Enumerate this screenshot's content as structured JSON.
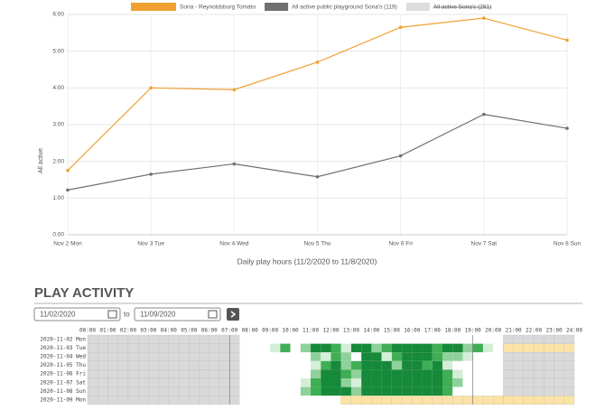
{
  "chart_data": {
    "type": "line",
    "categories": [
      "Nov 2 Mon",
      "Nov 3 Tue",
      "Nov 4 Wed",
      "Nov 5 Thu",
      "Nov 6 Fri",
      "Nov 7 Sat",
      "Nov 8 Sun"
    ],
    "series": [
      {
        "name": "Sona - Reynoldsburg Tomato",
        "color": "#f0a030",
        "values": [
          1.75,
          4.0,
          3.95,
          4.7,
          5.65,
          5.9,
          5.3
        ]
      },
      {
        "name": "All active public playground Sona's (119)",
        "color": "#707070",
        "values": [
          1.22,
          1.65,
          1.93,
          1.58,
          2.15,
          3.28,
          2.9
        ]
      },
      {
        "name": "All active Sona's (281)",
        "color": "#dddddd",
        "hidden": true,
        "values": [
          null,
          null,
          null,
          null,
          null,
          null,
          null
        ]
      }
    ],
    "ylabel": "All active",
    "xlabel": "Daily play hours (11/2/2020 to 11/8/2020)",
    "ylim": [
      0,
      6
    ],
    "yticks": [
      {
        "value": 0,
        "label": "0:00"
      },
      {
        "value": 1,
        "label": "1:00"
      },
      {
        "value": 2,
        "label": "2:00"
      },
      {
        "value": 3,
        "label": "3:00"
      },
      {
        "value": 4,
        "label": "4:00"
      },
      {
        "value": 5,
        "label": "5:00"
      },
      {
        "value": 6,
        "label": "6:00"
      }
    ],
    "grid": true
  },
  "activity": {
    "title": "PLAY ACTIVITY",
    "from": "11/02/2020",
    "to_label": "to",
    "to": "11/09/2020",
    "hours": [
      "00:00",
      "01:00",
      "02:00",
      "03:00",
      "04:00",
      "05:00",
      "06:00",
      "07:00",
      "08:00",
      "09:00",
      "10:00",
      "11:00",
      "12:00",
      "13:00",
      "14:00",
      "15:00",
      "16:00",
      "17:00",
      "18:00",
      "19:00",
      "20:00",
      "21:00",
      "22:00",
      "23:00",
      "24:00"
    ],
    "rows": [
      {
        "label": "2020-11-02 Mon",
        "cells": [
          null,
          null,
          null,
          null,
          null,
          null,
          null,
          null,
          null,
          null,
          null,
          null,
          null,
          null,
          null,
          0,
          0,
          0,
          0,
          0,
          0,
          0,
          0,
          0,
          0,
          0,
          0,
          0,
          0,
          0,
          0,
          0,
          0,
          0,
          0,
          0,
          0,
          0,
          0,
          0,
          0,
          null,
          null,
          null,
          null,
          null,
          null,
          null
        ]
      },
      {
        "label": "2020-11-03 Tue",
        "highlight": [
          20.5,
          24
        ],
        "cells": [
          null,
          null,
          null,
          null,
          null,
          null,
          null,
          null,
          null,
          null,
          null,
          null,
          null,
          null,
          null,
          0,
          0,
          0,
          1,
          3,
          0,
          2,
          4,
          4,
          3,
          1,
          4,
          4,
          2,
          3,
          4,
          4,
          4,
          4,
          3,
          4,
          4,
          2,
          3,
          1,
          0,
          null,
          null,
          null,
          null,
          null,
          null,
          null
        ]
      },
      {
        "label": "2020-11-04 Wed",
        "cells": [
          null,
          null,
          null,
          null,
          null,
          null,
          null,
          null,
          null,
          null,
          null,
          null,
          null,
          null,
          null,
          0,
          0,
          0,
          0,
          0,
          0,
          0,
          2,
          1,
          3,
          2,
          0,
          4,
          4,
          1,
          3,
          4,
          4,
          4,
          3,
          2,
          2,
          1,
          0,
          0,
          0,
          null,
          null,
          null,
          null,
          null,
          null,
          null
        ]
      },
      {
        "label": "2020-11-05 Thu",
        "cells": [
          null,
          null,
          null,
          null,
          null,
          null,
          null,
          null,
          null,
          null,
          null,
          null,
          null,
          null,
          null,
          0,
          0,
          0,
          0,
          0,
          0,
          0,
          1,
          3,
          4,
          2,
          3,
          4,
          4,
          4,
          2,
          4,
          4,
          3,
          4,
          1,
          0,
          0,
          0,
          0,
          0,
          null,
          null,
          null,
          null,
          null,
          null,
          null
        ]
      },
      {
        "label": "2020-11-06 Fri",
        "cells": [
          null,
          null,
          null,
          null,
          null,
          null,
          null,
          null,
          null,
          null,
          null,
          null,
          null,
          null,
          null,
          0,
          0,
          0,
          0,
          0,
          0,
          0,
          2,
          4,
          4,
          3,
          2,
          4,
          4,
          4,
          4,
          4,
          4,
          4,
          4,
          3,
          1,
          0,
          0,
          0,
          0,
          null,
          null,
          null,
          null,
          null,
          null,
          null
        ]
      },
      {
        "label": "2020-11-07 Sat",
        "cells": [
          null,
          null,
          null,
          null,
          null,
          null,
          null,
          null,
          null,
          null,
          null,
          null,
          null,
          null,
          null,
          0,
          0,
          0,
          0,
          0,
          0,
          1,
          3,
          4,
          4,
          2,
          1,
          4,
          4,
          4,
          4,
          4,
          4,
          4,
          4,
          3,
          2,
          0,
          0,
          0,
          0,
          null,
          null,
          null,
          null,
          null,
          null,
          null
        ]
      },
      {
        "label": "2020-11-08 Sun",
        "cells": [
          null,
          null,
          null,
          null,
          null,
          null,
          null,
          null,
          null,
          null,
          null,
          null,
          null,
          null,
          null,
          0,
          0,
          0,
          0,
          0,
          0,
          2,
          3,
          4,
          4,
          4,
          2,
          4,
          4,
          4,
          4,
          4,
          4,
          4,
          4,
          3,
          0,
          0,
          0,
          0,
          0,
          null,
          null,
          null,
          null,
          null,
          null,
          null
        ]
      },
      {
        "label": "2020-11-09 Mon",
        "highlight": [
          12.5,
          24
        ],
        "cells": [
          null,
          null,
          null,
          null,
          null,
          null,
          null,
          null,
          null,
          null,
          null,
          null,
          null,
          null,
          null,
          0,
          0,
          0,
          0,
          0,
          0,
          0,
          0,
          0,
          0,
          null,
          null,
          null,
          null,
          null,
          null,
          null,
          null,
          null,
          null,
          null,
          null,
          null,
          null,
          null,
          null,
          null,
          null,
          null,
          null,
          null,
          null,
          null
        ]
      }
    ]
  }
}
